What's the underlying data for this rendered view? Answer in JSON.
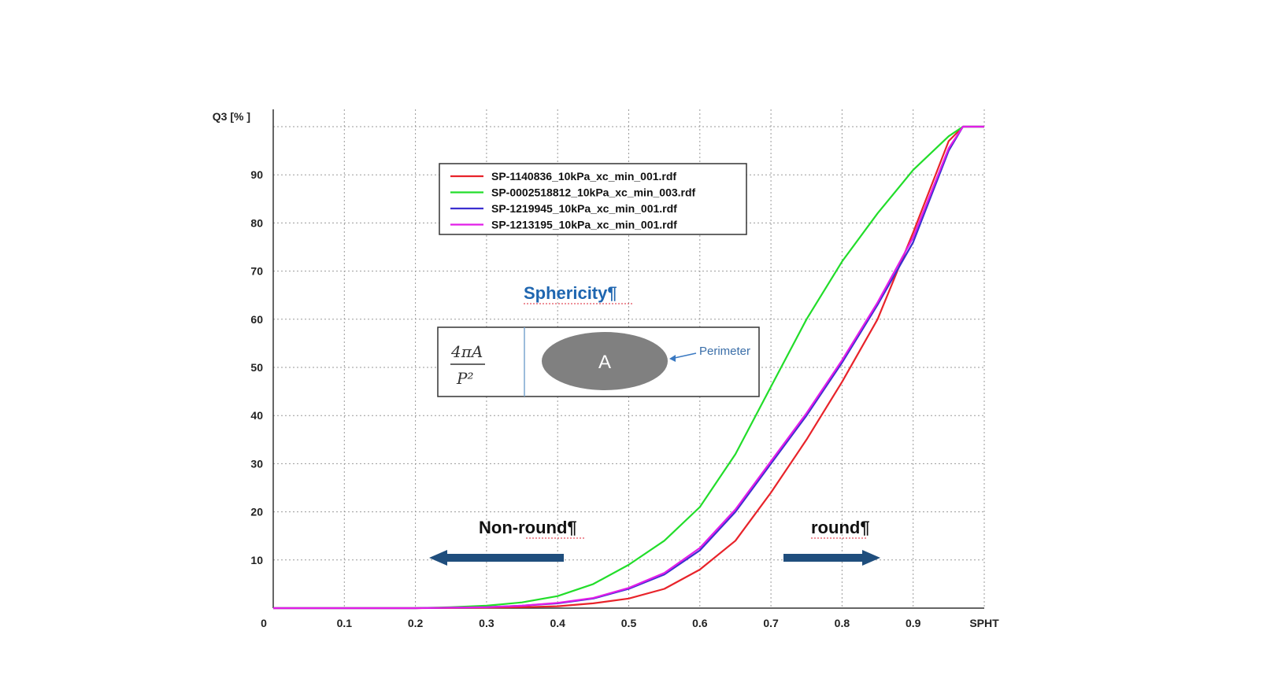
{
  "chart_data": {
    "type": "line",
    "ylabel": "Q3 [% ]",
    "xlabel": "SPHT",
    "xlim": [
      0,
      1.0
    ],
    "ylim": [
      0,
      100
    ],
    "x_ticks": [
      {
        "v": 0,
        "label": "0"
      },
      {
        "v": 0.1,
        "label": "0.1"
      },
      {
        "v": 0.2,
        "label": "0.2"
      },
      {
        "v": 0.3,
        "label": "0.3"
      },
      {
        "v": 0.4,
        "label": "0.4"
      },
      {
        "v": 0.5,
        "label": "0.5"
      },
      {
        "v": 0.6,
        "label": "0.6"
      },
      {
        "v": 0.7,
        "label": "0.7"
      },
      {
        "v": 0.8,
        "label": "0.8"
      },
      {
        "v": 0.9,
        "label": "0.9"
      },
      {
        "v": 1.0,
        "label": "SPHT"
      }
    ],
    "y_ticks": [
      {
        "v": 10,
        "label": "10"
      },
      {
        "v": 20,
        "label": "20"
      },
      {
        "v": 30,
        "label": "30"
      },
      {
        "v": 40,
        "label": "40"
      },
      {
        "v": 50,
        "label": "50"
      },
      {
        "v": 60,
        "label": "60"
      },
      {
        "v": 70,
        "label": "70"
      },
      {
        "v": 80,
        "label": "80"
      },
      {
        "v": 90,
        "label": "90"
      }
    ],
    "grid": true,
    "legend_position": "top-left",
    "series": [
      {
        "name": "SP-1140836_10kPa_xc_min_001.rdf",
        "color": "#e8232a",
        "x": [
          0,
          0.2,
          0.3,
          0.35,
          0.4,
          0.45,
          0.5,
          0.55,
          0.6,
          0.65,
          0.7,
          0.75,
          0.8,
          0.85,
          0.9,
          0.95,
          0.97,
          1.0
        ],
        "y": [
          0,
          0,
          0.1,
          0.2,
          0.4,
          1,
          2,
          4,
          8,
          14,
          24,
          35,
          47,
          60,
          78,
          97,
          100,
          100
        ]
      },
      {
        "name": "SP-0002518812_10kPa_xc_min_003.rdf",
        "color": "#22dd2a",
        "x": [
          0,
          0.2,
          0.25,
          0.3,
          0.35,
          0.4,
          0.45,
          0.5,
          0.55,
          0.6,
          0.65,
          0.7,
          0.75,
          0.8,
          0.85,
          0.9,
          0.95,
          0.97,
          1.0
        ],
        "y": [
          0,
          0,
          0.2,
          0.5,
          1.2,
          2.5,
          5,
          9,
          14,
          21,
          32,
          46,
          60,
          72,
          82,
          91,
          98,
          100,
          100
        ]
      },
      {
        "name": "SP-1219945_10kPa_xc_min_001.rdf",
        "color": "#3b2fd0",
        "x": [
          0,
          0.2,
          0.3,
          0.35,
          0.4,
          0.45,
          0.5,
          0.55,
          0.6,
          0.65,
          0.7,
          0.75,
          0.8,
          0.85,
          0.9,
          0.95,
          0.97,
          1.0
        ],
        "y": [
          0,
          0,
          0.2,
          0.5,
          1,
          2,
          4,
          7,
          12,
          20,
          30,
          40,
          51,
          63,
          76,
          95,
          100,
          100
        ]
      },
      {
        "name": "SP-1213195_10kPa_xc_min_001.rdf",
        "color": "#e21de8",
        "x": [
          0,
          0.2,
          0.3,
          0.35,
          0.4,
          0.45,
          0.5,
          0.55,
          0.6,
          0.65,
          0.7,
          0.75,
          0.8,
          0.85,
          0.9,
          0.95,
          0.97,
          1.0
        ],
        "y": [
          0,
          0,
          0.2,
          0.5,
          1.1,
          2.1,
          4.2,
          7.3,
          12.5,
          20.5,
          30.5,
          40.5,
          51.5,
          63.5,
          77,
          95.5,
          100,
          100
        ]
      }
    ],
    "annotations": {
      "sphericity_title": "Sphericity¶",
      "formula_numerator": "4πA",
      "formula_denominator": "P²",
      "area_label": "A",
      "perimeter_label": "Perimeter",
      "left_label": "Non-round¶",
      "right_label": "round¶"
    }
  }
}
